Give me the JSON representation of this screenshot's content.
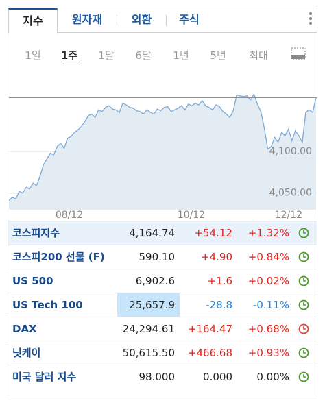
{
  "tabs": [
    "지수",
    "원자재",
    "외환",
    "주식"
  ],
  "active_tab": 0,
  "periods": [
    "1일",
    "1주",
    "1달",
    "6달",
    "1년",
    "5년",
    "최대"
  ],
  "active_period": 1,
  "colors": {
    "up": "#e3211c",
    "down": "#1f7fd9",
    "accent": "#174a8b",
    "clock_open": "#4a9a2a",
    "clock_closed": "#d9443c"
  },
  "chart_data": {
    "type": "area",
    "y_ticks": [
      "4,100.00",
      "4,050.00"
    ],
    "x_ticks": [
      "08/12",
      "10/12",
      "12/12"
    ],
    "ylim": [
      4030,
      4175
    ],
    "reference_value": 4164.74,
    "values": [
      4041,
      4045,
      4043,
      4052,
      4050,
      4057,
      4055,
      4062,
      4059,
      4070,
      4084,
      4091,
      4098,
      4096,
      4106,
      4110,
      4104,
      4116,
      4118,
      4123,
      4126,
      4130,
      4136,
      4143,
      4145,
      4141,
      4150,
      4148,
      4153,
      4155,
      4151,
      4150,
      4147,
      4158,
      4156,
      4153,
      4152,
      4149,
      4148,
      4145,
      4150,
      4147,
      4145,
      4151,
      4149,
      4153,
      4154,
      4148,
      4150,
      4152,
      4155,
      4150,
      4157,
      4155,
      4158,
      4156,
      4161,
      4155,
      4153,
      4150,
      4156,
      4154,
      4148,
      4145,
      4141,
      4149,
      4168,
      4167,
      4166,
      4167,
      4162,
      4169,
      4157,
      4148,
      4128,
      4103,
      4106,
      4117,
      4111,
      4123,
      4119,
      4127,
      4113,
      4125,
      4119,
      4111,
      4147,
      4150,
      4147,
      4165
    ],
    "grid": true
  },
  "rows": [
    {
      "name": "코스피지수",
      "price": "4,164.74",
      "change": "+54.12",
      "pct": "+1.32%",
      "dir": "up",
      "clock": "open"
    },
    {
      "name": "코스피200 선물 (F)",
      "price": "590.10",
      "change": "+4.90",
      "pct": "+0.84%",
      "dir": "up",
      "clock": "open"
    },
    {
      "name": "US 500",
      "price": "6,902.6",
      "change": "+1.6",
      "pct": "+0.02%",
      "dir": "up",
      "clock": "open"
    },
    {
      "name": "US Tech 100",
      "price": "25,657.9",
      "change": "-28.8",
      "pct": "-0.11%",
      "dir": "down",
      "clock": "open"
    },
    {
      "name": "DAX",
      "price": "24,294.61",
      "change": "+164.47",
      "pct": "+0.68%",
      "dir": "up",
      "clock": "closed"
    },
    {
      "name": "닛케이",
      "price": "50,615.50",
      "change": "+466.68",
      "pct": "+0.93%",
      "dir": "up",
      "clock": "open"
    },
    {
      "name": "미국 달러 지수",
      "price": "98.000",
      "change": "0.000",
      "pct": "0.00%",
      "dir": "flat",
      "clock": "open"
    }
  ],
  "highlighted_row": 0,
  "price_flash_row": 3,
  "icons": {
    "more": "more-vertical-icon",
    "fullscreen": "fullscreen-icon",
    "clock": "clock-icon"
  }
}
